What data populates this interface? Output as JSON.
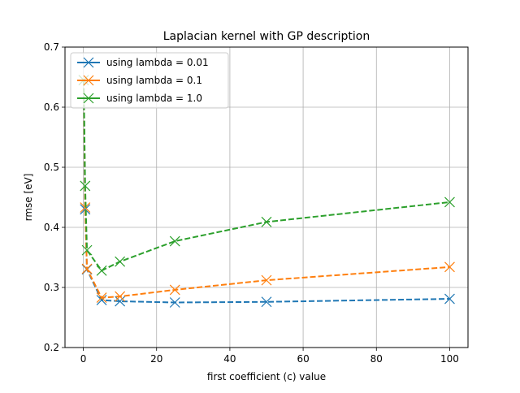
{
  "chart_data": {
    "type": "line",
    "title": "Laplacian kernel with GP description",
    "xlabel": "first coefficient (c) value",
    "ylabel": "rmse [eV]",
    "xlim": [
      -5,
      105
    ],
    "ylim": [
      0.2,
      0.7
    ],
    "xticks": [
      0,
      20,
      40,
      60,
      80,
      100
    ],
    "yticks": [
      0.2,
      0.3,
      0.4,
      0.5,
      0.6,
      0.7
    ],
    "grid": true,
    "legend_position": "top-left",
    "marker": "x",
    "line_style": "dashed",
    "series": [
      {
        "name": "using lambda = 0.01",
        "color": "#1f77b4",
        "x": [
          0.1,
          0.5,
          1,
          5,
          10,
          25,
          50,
          100
        ],
        "y": [
          0.645,
          0.43,
          0.33,
          0.279,
          0.277,
          0.275,
          0.276,
          0.281
        ]
      },
      {
        "name": "using lambda = 0.1",
        "color": "#ff7f0e",
        "x": [
          0.1,
          0.5,
          1,
          5,
          10,
          25,
          50,
          100
        ],
        "y": [
          0.645,
          0.433,
          0.331,
          0.283,
          0.285,
          0.296,
          0.312,
          0.334
        ]
      },
      {
        "name": "using lambda = 1.0",
        "color": "#2ca02c",
        "x": [
          0.1,
          0.5,
          1,
          5,
          10,
          25,
          50,
          100
        ],
        "y": [
          0.645,
          0.469,
          0.362,
          0.328,
          0.343,
          0.377,
          0.409,
          0.442
        ]
      }
    ]
  }
}
